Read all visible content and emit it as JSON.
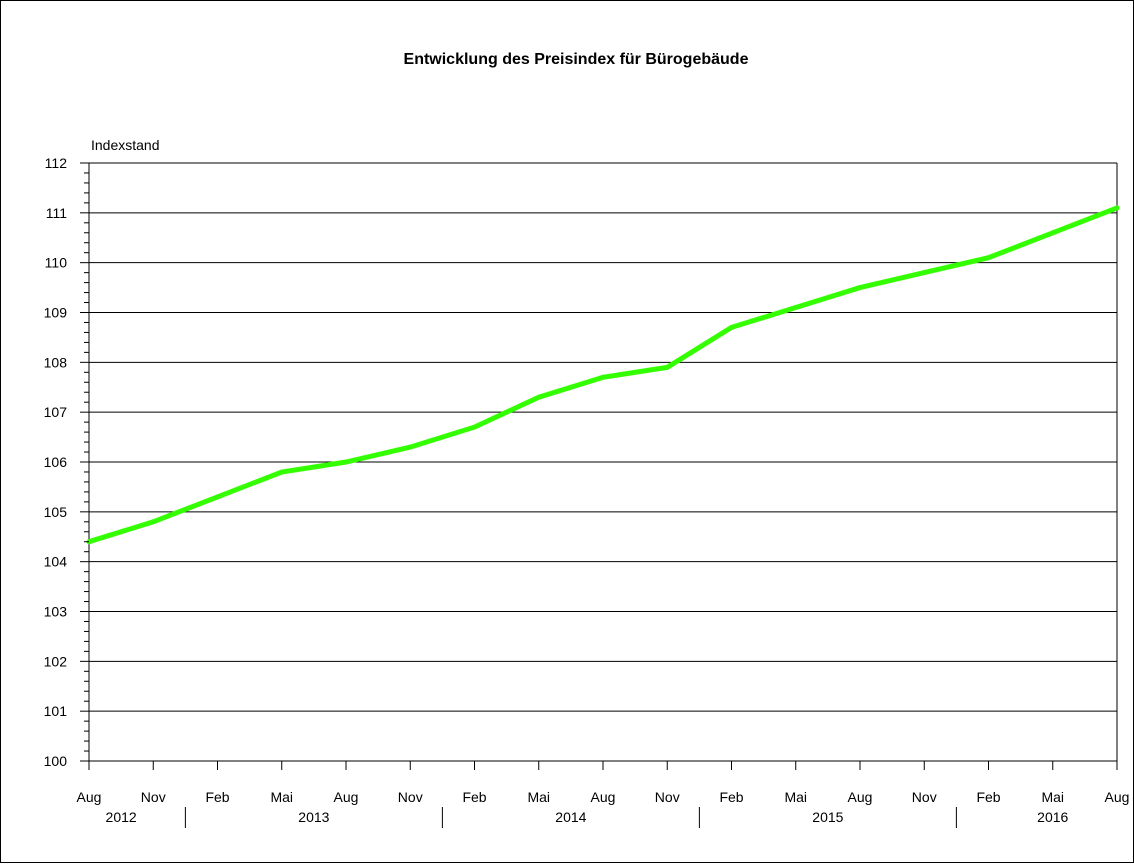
{
  "chart_data": {
    "type": "line",
    "title": "Entwicklung des Preisindex für Bürogebäude",
    "ylabel": "Indexstand",
    "xlabel": "",
    "ylim": [
      100,
      112
    ],
    "yticks": [
      100,
      101,
      102,
      103,
      104,
      105,
      106,
      107,
      108,
      109,
      110,
      111,
      112
    ],
    "y_minor_step": 0.2,
    "grid": true,
    "legend": "none",
    "x": [
      "Aug 2012",
      "Nov 2012",
      "Feb 2013",
      "Mai 2013",
      "Aug 2013",
      "Nov 2013",
      "Feb 2014",
      "Mai 2014",
      "Aug 2014",
      "Nov 2014",
      "Feb 2015",
      "Mai 2015",
      "Aug 2015",
      "Nov 2015",
      "Feb 2016",
      "Mai 2016",
      "Aug 2016"
    ],
    "x_tick_labels": [
      "Aug",
      "Nov",
      "Feb",
      "Mai",
      "Aug",
      "Nov",
      "Feb",
      "Mai",
      "Aug",
      "Nov",
      "Feb",
      "Mai",
      "Aug",
      "Nov",
      "Feb",
      "Mai",
      "Aug"
    ],
    "years": [
      {
        "label": "2012",
        "from": 0,
        "to": 1
      },
      {
        "label": "2013",
        "from": 2,
        "to": 5
      },
      {
        "label": "2014",
        "from": 6,
        "to": 9
      },
      {
        "label": "2015",
        "from": 10,
        "to": 13
      },
      {
        "label": "2016",
        "from": 14,
        "to": 16
      }
    ],
    "series": [
      {
        "color": "#33ff00",
        "values": [
          104.4,
          104.8,
          105.3,
          105.8,
          106.0,
          106.3,
          106.7,
          107.3,
          107.7,
          107.9,
          108.7,
          109.1,
          109.5,
          109.8,
          110.1,
          110.6,
          111.1
        ]
      }
    ]
  }
}
